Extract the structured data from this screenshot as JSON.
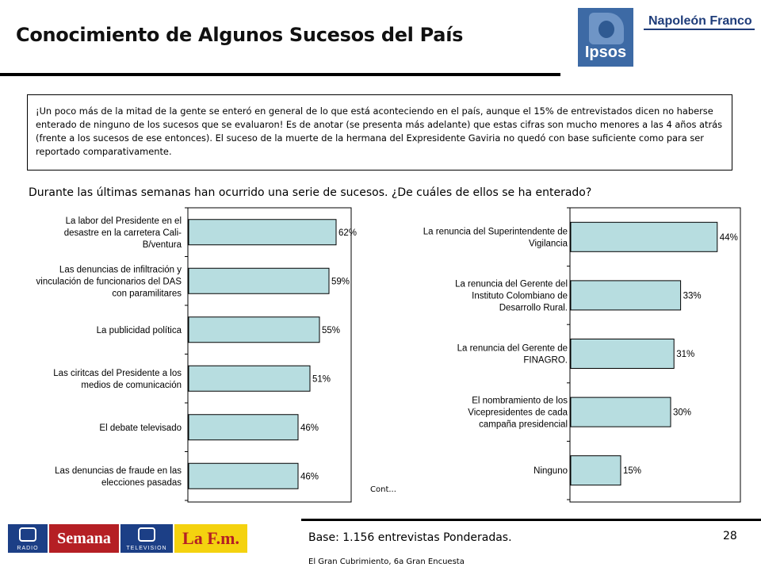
{
  "header": {
    "title": "Conocimiento de Algunos Sucesos del País",
    "logo_ipsos": "Ipsos",
    "logo_partner": "Napoleón Franco"
  },
  "note": "¡Un poco más de la mitad de la gente se enteró en general de lo que está aconteciendo en el país, aunque el 15% de entrevistados dicen no haberse enterado de ninguno de los sucesos que se evaluaron! Es de anotar (se presenta más adelante) que estas cifras son mucho menores a las 4 años atrás (frente a los sucesos de ese entonces). El suceso de la muerte de la hermana del Expresidente Gaviria no quedó con base suficiente como para ser reportado comparativamente.",
  "question": "Durante las últimas semanas han ocurrido una serie de sucesos. ¿De cuáles de ellos se ha enterado?",
  "chart_data": [
    {
      "type": "bar",
      "orientation": "horizontal",
      "bar_color": "#b7dde0",
      "categories": [
        [
          "La labor del Presidente en el",
          "desastre en la carretera Cali-",
          "B/ventura"
        ],
        [
          "Las denuncias de infiltración y",
          "vinculación de funcionarios del DAS",
          "con paramilitares"
        ],
        [
          "La publicidad política"
        ],
        [
          "Las ciritcas del Presidente a los",
          "medios de comunicación"
        ],
        [
          "El debate televisado"
        ],
        [
          "Las denuncias de fraude en las",
          "elecciones pasadas"
        ]
      ],
      "values": [
        62,
        59,
        55,
        51,
        46,
        46
      ],
      "value_labels": [
        "62%",
        "59%",
        "55%",
        "51%",
        "46%",
        "46%"
      ],
      "xlim": [
        0,
        70
      ]
    },
    {
      "type": "bar",
      "orientation": "horizontal",
      "bar_color": "#b7dde0",
      "categories": [
        [
          "La renuncia del Superintendente de",
          "Vigilancia"
        ],
        [
          "La renuncia del Gerente del",
          "Instituto Colombiano de",
          "Desarrollo Rural."
        ],
        [
          "La renuncia del Gerente de",
          "FINAGRO."
        ],
        [
          "El nombramiento de los",
          "Vicepresidentes de cada",
          "campaña presidencial"
        ],
        [
          "Ninguno"
        ]
      ],
      "values": [
        44,
        33,
        31,
        30,
        15
      ],
      "value_labels": [
        "44%",
        "33%",
        "31%",
        "30%",
        "15%"
      ],
      "xlim": [
        0,
        50
      ]
    }
  ],
  "cont_text": "Cont...",
  "footer": {
    "base": "Base: 1.156 entrevistas Ponderadas.",
    "source": "El Gran Cubrimiento, 6a Gran Encuesta",
    "page_number": "28",
    "sponsors": {
      "rcn_radio": "RADIO",
      "semana": "Semana",
      "rcn_tv": "TELEVISION",
      "lafm": "La F.m."
    }
  }
}
